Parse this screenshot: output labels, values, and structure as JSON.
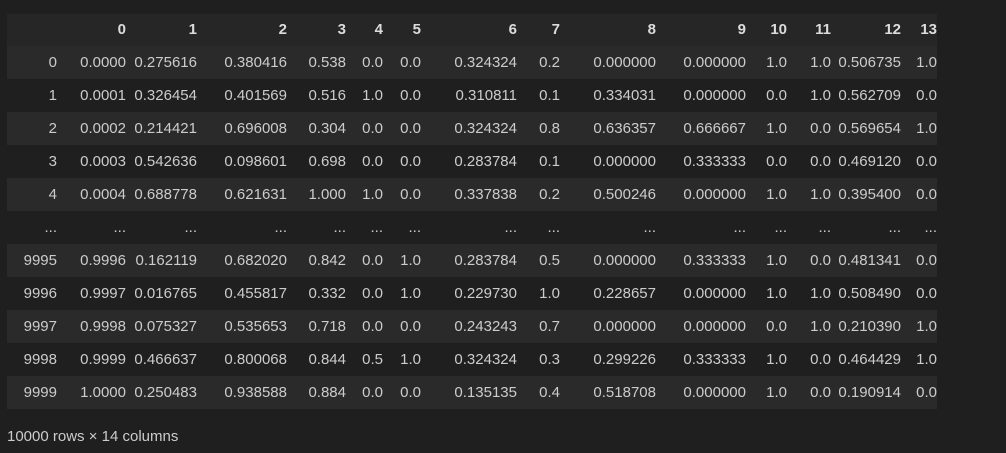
{
  "table": {
    "columns": [
      "0",
      "1",
      "2",
      "3",
      "4",
      "5",
      "6",
      "7",
      "8",
      "9",
      "10",
      "11",
      "12",
      "13"
    ],
    "rows": [
      {
        "index": "0",
        "values": [
          "0.0000",
          "0.275616",
          "0.380416",
          "0.538",
          "0.0",
          "0.0",
          "0.324324",
          "0.2",
          "0.000000",
          "0.000000",
          "1.0",
          "1.0",
          "0.506735",
          "1.0"
        ]
      },
      {
        "index": "1",
        "values": [
          "0.0001",
          "0.326454",
          "0.401569",
          "0.516",
          "1.0",
          "0.0",
          "0.310811",
          "0.1",
          "0.334031",
          "0.000000",
          "0.0",
          "1.0",
          "0.562709",
          "0.0"
        ]
      },
      {
        "index": "2",
        "values": [
          "0.0002",
          "0.214421",
          "0.696008",
          "0.304",
          "0.0",
          "0.0",
          "0.324324",
          "0.8",
          "0.636357",
          "0.666667",
          "1.0",
          "0.0",
          "0.569654",
          "1.0"
        ]
      },
      {
        "index": "3",
        "values": [
          "0.0003",
          "0.542636",
          "0.098601",
          "0.698",
          "0.0",
          "0.0",
          "0.283784",
          "0.1",
          "0.000000",
          "0.333333",
          "0.0",
          "0.0",
          "0.469120",
          "0.0"
        ]
      },
      {
        "index": "4",
        "values": [
          "0.0004",
          "0.688778",
          "0.621631",
          "1.000",
          "1.0",
          "0.0",
          "0.337838",
          "0.2",
          "0.500246",
          "0.000000",
          "1.0",
          "1.0",
          "0.395400",
          "0.0"
        ]
      },
      {
        "index": "...",
        "values": [
          "...",
          "...",
          "...",
          "...",
          "...",
          "...",
          "...",
          "...",
          "...",
          "...",
          "...",
          "...",
          "...",
          "..."
        ]
      },
      {
        "index": "9995",
        "values": [
          "0.9996",
          "0.162119",
          "0.682020",
          "0.842",
          "0.0",
          "1.0",
          "0.283784",
          "0.5",
          "0.000000",
          "0.333333",
          "1.0",
          "0.0",
          "0.481341",
          "0.0"
        ]
      },
      {
        "index": "9996",
        "values": [
          "0.9997",
          "0.016765",
          "0.455817",
          "0.332",
          "0.0",
          "1.0",
          "0.229730",
          "1.0",
          "0.228657",
          "0.000000",
          "1.0",
          "1.0",
          "0.508490",
          "0.0"
        ]
      },
      {
        "index": "9997",
        "values": [
          "0.9998",
          "0.075327",
          "0.535653",
          "0.718",
          "0.0",
          "0.0",
          "0.243243",
          "0.7",
          "0.000000",
          "0.000000",
          "0.0",
          "1.0",
          "0.210390",
          "1.0"
        ]
      },
      {
        "index": "9998",
        "values": [
          "0.9999",
          "0.466637",
          "0.800068",
          "0.844",
          "0.5",
          "1.0",
          "0.324324",
          "0.3",
          "0.299226",
          "0.333333",
          "1.0",
          "0.0",
          "0.464429",
          "1.0"
        ]
      },
      {
        "index": "9999",
        "values": [
          "1.0000",
          "0.250483",
          "0.938588",
          "0.884",
          "0.0",
          "0.0",
          "0.135135",
          "0.4",
          "0.518708",
          "0.000000",
          "1.0",
          "0.0",
          "0.190914",
          "0.0"
        ]
      }
    ]
  },
  "footer": {
    "shape_text": "10000 rows × 14 columns"
  }
}
